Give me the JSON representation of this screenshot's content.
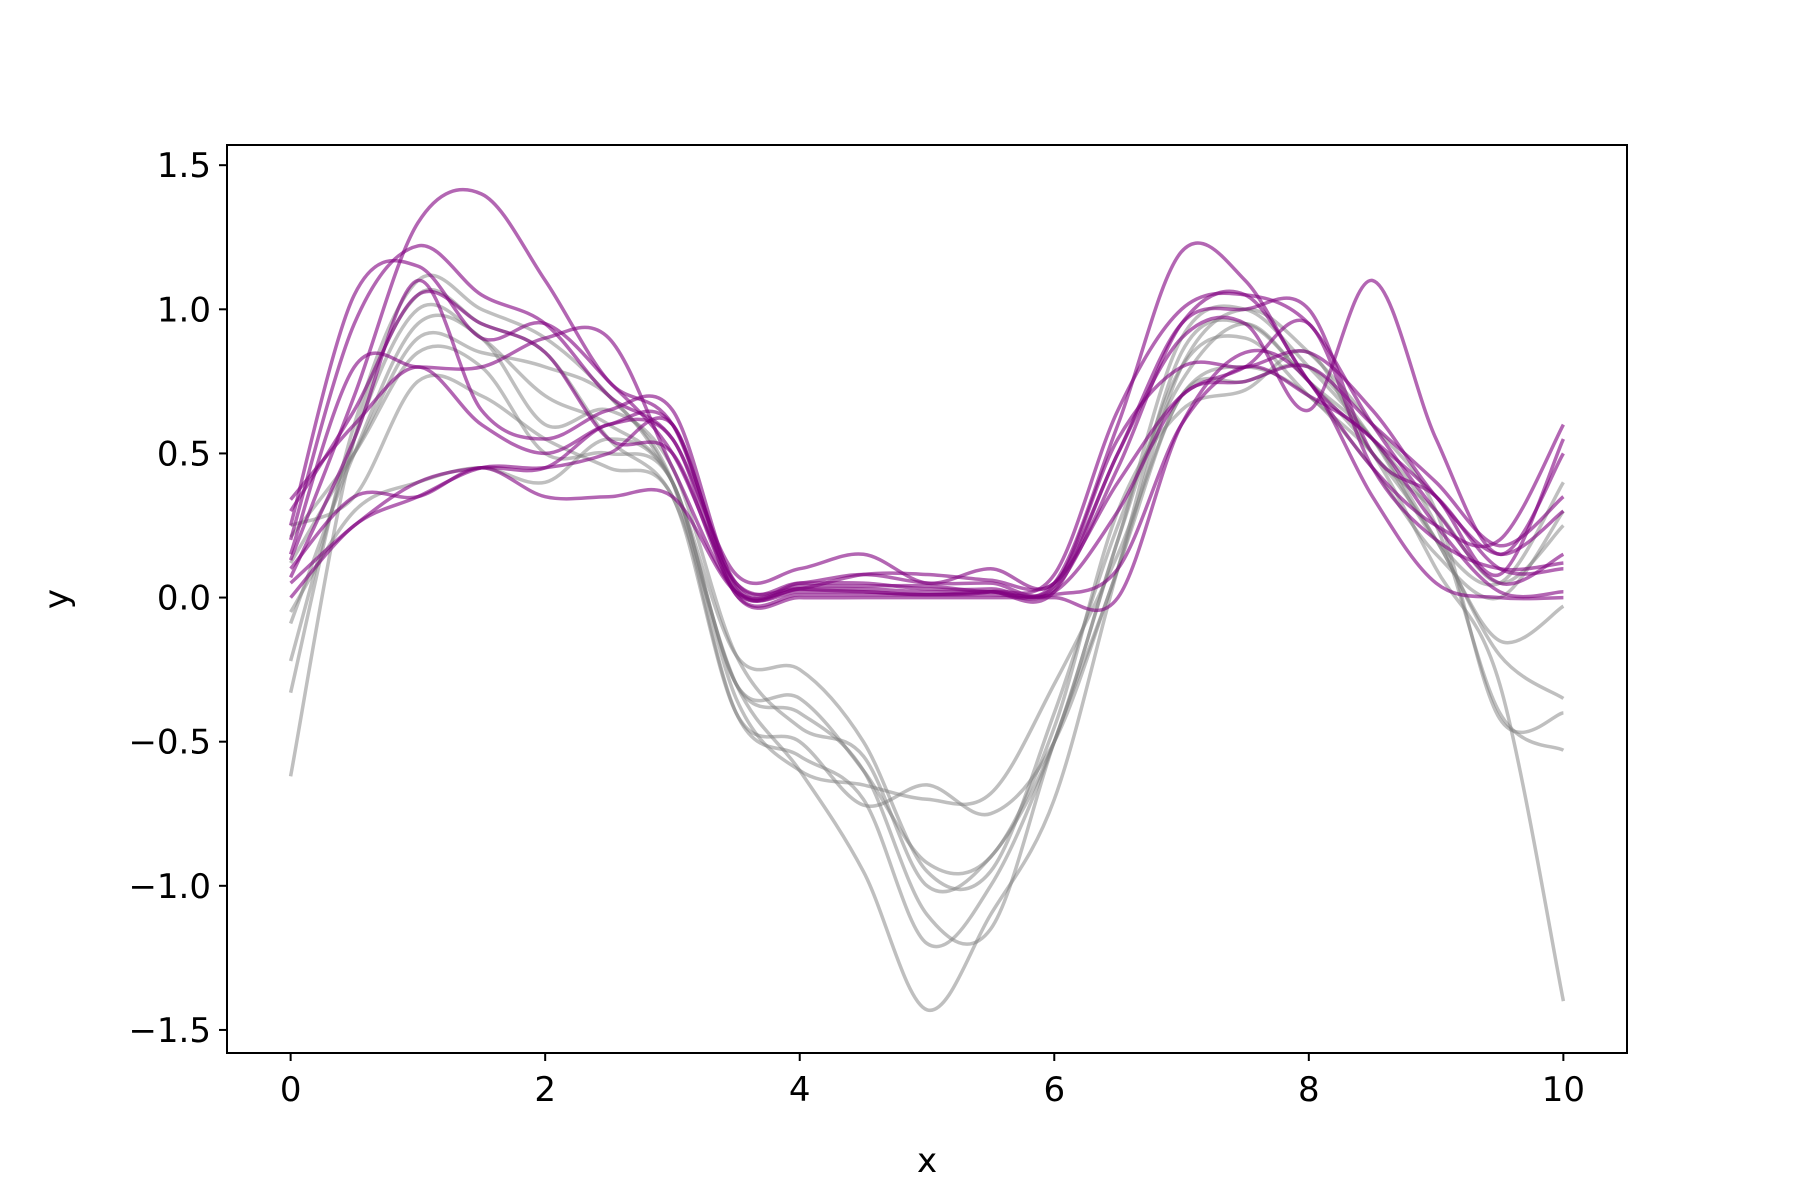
{
  "chart_data": {
    "type": "line",
    "xlabel": "x",
    "ylabel": "y",
    "xlim": [
      -0.5,
      10.5
    ],
    "ylim": [
      -1.58,
      1.57
    ],
    "x_ticks": [
      0,
      2,
      4,
      6,
      8,
      10
    ],
    "x_tick_labels": [
      "0",
      "2",
      "4",
      "6",
      "8",
      "10"
    ],
    "y_ticks": [
      -1.5,
      -1.0,
      -0.5,
      0.0,
      0.5,
      1.0,
      1.5
    ],
    "y_tick_labels": [
      "−1.5",
      "−1.0",
      "−0.5",
      "0.0",
      "0.5",
      "1.0",
      "1.5"
    ],
    "grid": false,
    "legend": "none",
    "colors": {
      "gray_samples": "#808080",
      "purple_samples": "#800080"
    },
    "x": [
      0,
      0.5,
      1,
      1.5,
      2,
      2.5,
      3,
      3.5,
      4,
      4.5,
      5,
      5.5,
      6,
      6.5,
      7,
      7.5,
      8,
      8.5,
      9,
      9.5,
      10
    ],
    "series": [
      {
        "group": "gray",
        "values": [
          -0.62,
          0.55,
          1.05,
          0.95,
          0.85,
          0.55,
          0.35,
          -0.3,
          -0.6,
          -0.95,
          -1.43,
          -1.1,
          -0.7,
          0.1,
          0.85,
          0.95,
          0.75,
          0.5,
          0.1,
          -0.3,
          -1.4
        ]
      },
      {
        "group": "gray",
        "values": [
          -0.33,
          0.6,
          1.1,
          1.0,
          0.9,
          0.7,
          0.4,
          -0.4,
          -0.55,
          -0.7,
          -1.2,
          -1.0,
          -0.5,
          0.2,
          0.9,
          1.0,
          0.8,
          0.55,
          0.25,
          -0.4,
          -0.53
        ]
      },
      {
        "group": "gray",
        "values": [
          -0.22,
          0.55,
          1.0,
          0.9,
          0.7,
          0.6,
          0.4,
          -0.3,
          -0.4,
          -0.6,
          -1.1,
          -1.15,
          -0.5,
          0.1,
          0.8,
          1.0,
          0.85,
          0.6,
          0.3,
          -0.42,
          -0.4
        ]
      },
      {
        "group": "gray",
        "values": [
          -0.09,
          0.5,
          0.95,
          0.9,
          0.6,
          0.65,
          0.45,
          -0.2,
          -0.45,
          -0.55,
          -1.0,
          -0.9,
          -0.5,
          0.2,
          0.8,
          0.9,
          0.7,
          0.5,
          0.2,
          -0.2,
          -0.35
        ]
      },
      {
        "group": "gray",
        "values": [
          0.12,
          0.5,
          0.9,
          0.85,
          0.8,
          0.7,
          0.4,
          -0.2,
          -0.25,
          -0.5,
          -0.95,
          -0.95,
          -0.4,
          0.25,
          0.75,
          0.95,
          0.75,
          0.55,
          0.2,
          -0.15,
          -0.03
        ]
      },
      {
        "group": "gray",
        "values": [
          0.21,
          0.5,
          0.85,
          0.8,
          0.5,
          0.5,
          0.4,
          -0.35,
          -0.6,
          -0.65,
          -0.7,
          -0.68,
          -0.3,
          0.15,
          0.7,
          0.8,
          0.7,
          0.45,
          0.15,
          0.0,
          0.3
        ]
      },
      {
        "group": "gray",
        "values": [
          0.25,
          0.35,
          0.75,
          0.7,
          0.55,
          0.45,
          0.35,
          -0.4,
          -0.5,
          -0.72,
          -0.65,
          -0.75,
          -0.5,
          0.1,
          0.7,
          0.75,
          0.8,
          0.55,
          0.2,
          0.05,
          0.4
        ]
      },
      {
        "group": "gray",
        "values": [
          -0.05,
          0.3,
          0.4,
          0.45,
          0.4,
          0.55,
          0.4,
          -0.3,
          -0.35,
          -0.6,
          -0.92,
          -0.9,
          -0.45,
          0.3,
          0.65,
          0.72,
          0.85,
          0.5,
          0.3,
          0.05,
          0.25
        ]
      },
      {
        "group": "purple",
        "values": [
          0.25,
          1.05,
          1.15,
          0.9,
          0.95,
          0.75,
          0.5,
          0.05,
          0.03,
          0.02,
          0.01,
          0.02,
          0.08,
          0.65,
          1.0,
          1.05,
          0.95,
          0.6,
          0.3,
          0.05,
          0.15
        ]
      },
      {
        "group": "purple",
        "values": [
          0.2,
          0.95,
          1.22,
          1.05,
          0.95,
          0.7,
          0.55,
          0.08,
          0.1,
          0.15,
          0.05,
          0.1,
          0.05,
          0.5,
          0.95,
          1.0,
          1.0,
          0.5,
          0.35,
          0.1,
          0.1
        ]
      },
      {
        "group": "purple",
        "values": [
          0.13,
          0.7,
          1.3,
          1.4,
          1.1,
          0.75,
          0.6,
          0.05,
          0.05,
          0.05,
          0.03,
          0.03,
          0.05,
          0.6,
          1.2,
          1.1,
          0.75,
          0.55,
          0.35,
          0.08,
          0.55
        ]
      },
      {
        "group": "purple",
        "values": [
          0.07,
          0.55,
          1.1,
          0.65,
          0.55,
          0.65,
          0.65,
          0.04,
          0.05,
          0.08,
          0.05,
          0.05,
          0.04,
          0.55,
          0.8,
          0.8,
          0.85,
          0.65,
          0.35,
          0.15,
          0.3
        ]
      },
      {
        "group": "purple",
        "values": [
          0.34,
          0.6,
          0.8,
          0.6,
          0.5,
          0.6,
          0.6,
          0.03,
          0.04,
          0.04,
          0.04,
          0.02,
          0.03,
          0.45,
          0.95,
          1.05,
          0.75,
          0.45,
          0.25,
          0.2,
          0.6
        ]
      },
      {
        "group": "purple",
        "values": [
          0.3,
          0.65,
          1.05,
          0.95,
          0.85,
          0.55,
          0.5,
          0.02,
          0.03,
          0.03,
          0.02,
          0.02,
          0.02,
          0.5,
          0.9,
          0.95,
          0.65,
          1.1,
          0.55,
          0.15,
          0.5
        ]
      },
      {
        "group": "purple",
        "values": [
          0.15,
          0.8,
          0.8,
          0.8,
          0.9,
          0.9,
          0.45,
          0.02,
          0.02,
          0.02,
          0.01,
          0.02,
          0.02,
          0.3,
          0.7,
          0.75,
          0.8,
          0.6,
          0.4,
          0.18,
          0.35
        ]
      },
      {
        "group": "purple",
        "values": [
          0.1,
          0.35,
          0.35,
          0.45,
          0.35,
          0.35,
          0.35,
          0.02,
          0.03,
          0.08,
          0.08,
          0.06,
          0.05,
          0.4,
          0.7,
          0.8,
          0.95,
          0.45,
          0.2,
          0.1,
          0.12
        ]
      },
      {
        "group": "purple",
        "values": [
          0.05,
          0.25,
          0.4,
          0.45,
          0.45,
          0.6,
          0.55,
          0.01,
          0.01,
          0.01,
          0.01,
          0.01,
          0.01,
          0.1,
          0.6,
          0.8,
          0.7,
          0.55,
          0.25,
          0.02,
          0.02
        ]
      },
      {
        "group": "purple",
        "values": [
          0.0,
          0.25,
          0.35,
          0.45,
          0.45,
          0.5,
          0.6,
          0.01,
          0.0,
          0.0,
          0.0,
          0.0,
          0.0,
          0.0,
          0.6,
          0.85,
          0.75,
          0.35,
          0.05,
          0.0,
          0.0
        ]
      }
    ]
  }
}
